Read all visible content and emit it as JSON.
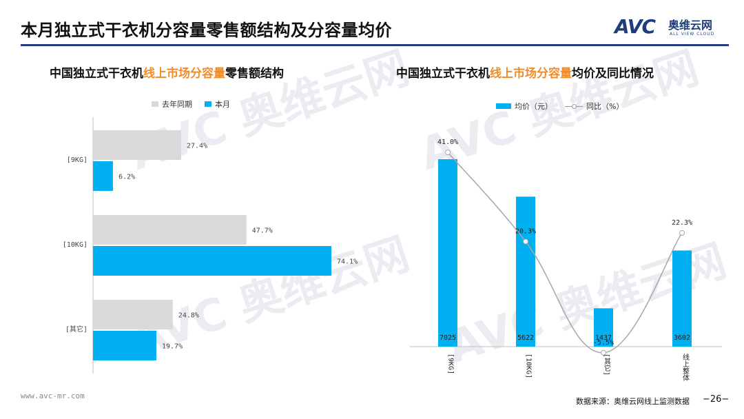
{
  "header": {
    "title": "本月独立式干衣机分容量零售额结构及分容量均价",
    "brand_logo": "AVC",
    "brand_cn": "奥维云网",
    "brand_en": "ALL VIEW CLOUD"
  },
  "left_chart": {
    "title_pre": "中国独立式干衣机",
    "title_hl": "线上市场分容量",
    "title_post": "零售额结构",
    "legend": [
      "去年同期",
      "本月"
    ]
  },
  "right_chart": {
    "title_pre": "中国独立式干衣机",
    "title_hl": "线上市场分容量",
    "title_post": "均价及同比情况",
    "legend": [
      "均价（元）",
      "同比（%）"
    ]
  },
  "footer": {
    "url": "www.avc-mr.com",
    "source": "数据来源：奥维云网线上监测数据",
    "page": "−26−"
  },
  "colors": {
    "blue": "#00b0f0",
    "gray": "#d9d9d9",
    "accent": "#f08c28",
    "brand": "#1f3d7a",
    "line": "#a6a6a6"
  },
  "chart_data": [
    {
      "type": "bar",
      "orientation": "horizontal",
      "categories": [
        "[9KG]",
        "[10KG]",
        "[其它]"
      ],
      "series": [
        {
          "name": "去年同期",
          "values": [
            27.4,
            47.7,
            24.8
          ],
          "labels": [
            "27.4%",
            "47.7%",
            "24.8%"
          ],
          "color": "#d9d9d9"
        },
        {
          "name": "本月",
          "values": [
            6.2,
            74.1,
            19.7
          ],
          "labels": [
            "6.2%",
            "74.1%",
            "19.7%"
          ],
          "color": "#00b0f0"
        }
      ],
      "xlim": [
        0,
        80
      ],
      "legend_position": "top"
    },
    {
      "type": "bar",
      "categories": [
        "[9KG]",
        "[10KG]",
        "[其它]",
        "线上整体"
      ],
      "series": [
        {
          "name": "均价（元）",
          "type": "bar",
          "values": [
            7025,
            5622,
            1437,
            3602
          ],
          "labels": [
            "7025",
            "5622",
            "1437",
            "3602"
          ],
          "color": "#00b0f0"
        },
        {
          "name": "同比（%）",
          "type": "line",
          "values": [
            41.0,
            20.3,
            -5.5,
            22.3
          ],
          "labels": [
            "41.0%",
            "20.3%",
            "-5.5%",
            "22.3%"
          ],
          "color": "#a6a6a6"
        }
      ],
      "ylim": [
        0,
        8000
      ],
      "y2lim": [
        -20,
        60
      ],
      "legend_position": "top"
    }
  ]
}
